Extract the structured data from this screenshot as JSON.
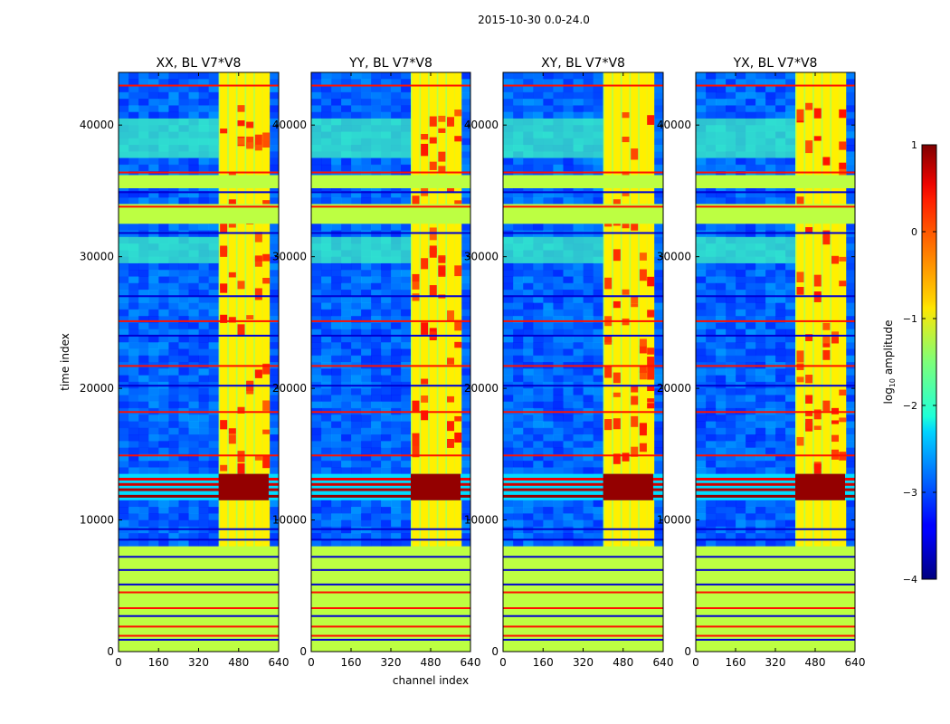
{
  "chart_data": {
    "type": "heatmap",
    "suptitle": "2015-10-30 0.0-24.0",
    "colormap": "jet",
    "shared_axes": {
      "xlabel": "channel index",
      "ylabel": "time index",
      "xlim": [
        0,
        640
      ],
      "ylim": [
        0,
        44000
      ],
      "xticks": [
        0,
        160,
        320,
        480,
        640
      ],
      "yticks": [
        0,
        10000,
        20000,
        30000,
        40000
      ],
      "xtick_labels": [
        "0",
        "160",
        "320",
        "480",
        "640"
      ],
      "ytick_labels": [
        "0",
        "10000",
        "20000",
        "30000",
        "40000"
      ]
    },
    "colorbar": {
      "label": "log10 amplitude",
      "label_main": "log",
      "label_sub": "10",
      "label_rest": " amplitude",
      "range": [
        -4,
        1
      ],
      "ticks": [
        1,
        0,
        -1,
        -2,
        -3,
        -4
      ],
      "tick_labels": [
        "1",
        "0",
        "−1",
        "−2",
        "−3",
        "−4"
      ]
    },
    "panels": [
      {
        "title": "XX, BL V7*V8",
        "pol": "XX"
      },
      {
        "title": "YY, BL V7*V8",
        "pol": "YY"
      },
      {
        "title": "XY, BL V7*V8",
        "pol": "XY"
      },
      {
        "title": "YX, BL V7*V8",
        "pol": "YX"
      }
    ],
    "features": {
      "background_level": -2.9,
      "flagged_level": -1.2,
      "rfi_channel_band": [
        400,
        600
      ],
      "rfi_channel_columns": [
        420,
        455,
        490,
        525,
        560,
        590
      ],
      "rfi_column_level": -0.8,
      "flagged_time_bands": [
        [
          0,
          8000
        ],
        [
          32500,
          34000
        ],
        [
          35200,
          36200
        ]
      ],
      "high_amplitude_time_band": [
        11500,
        13500
      ],
      "high_amplitude_level": 0.9,
      "elevated_time_bands": [
        [
          29500,
          31500
        ],
        [
          37500,
          40500
        ]
      ],
      "elevated_level": -1.8,
      "hot_rows": [
        1200,
        1900,
        3300,
        4500,
        14900,
        18200,
        21700,
        25100,
        33800,
        36400,
        43000
      ],
      "hot_row_level": 0.3,
      "dropout_rows": [
        900,
        2700,
        5100,
        6200,
        7200,
        8500,
        9300,
        20200,
        24000,
        27000,
        31800,
        34900
      ]
    }
  }
}
